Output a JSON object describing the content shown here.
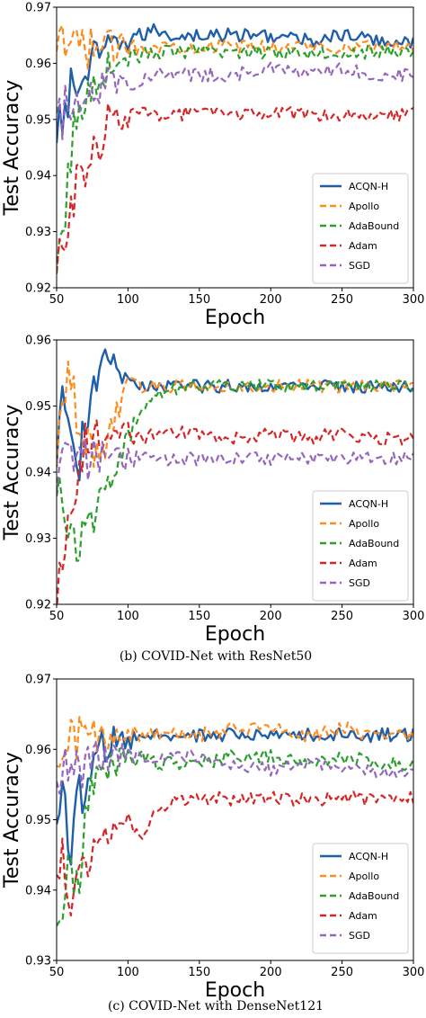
{
  "chart_data": [
    {
      "type": "line",
      "caption": "",
      "xlabel": "Epoch",
      "ylabel": "Test Accuracy",
      "xlim": [
        50,
        300
      ],
      "ylim": [
        0.92,
        0.97
      ],
      "xticks": [
        "50",
        "100",
        "150",
        "200",
        "250",
        "300"
      ],
      "yticks": [
        "0.92",
        "0.93",
        "0.94",
        "0.95",
        "0.96",
        "0.97"
      ],
      "grid": false,
      "legend_position": "lower-right",
      "series": [
        {
          "name": "ACQN-H",
          "color": "#1f5ea8",
          "dash": "solid",
          "x": [
            50,
            55,
            60,
            65,
            70,
            75,
            80,
            85,
            90,
            95,
            100,
            110,
            120,
            130,
            150,
            175,
            200,
            225,
            250,
            275,
            300
          ],
          "y": [
            0.944,
            0.952,
            0.955,
            0.956,
            0.958,
            0.96,
            0.961,
            0.962,
            0.963,
            0.964,
            0.964,
            0.965,
            0.966,
            0.965,
            0.965,
            0.965,
            0.965,
            0.964,
            0.965,
            0.964,
            0.964
          ]
        },
        {
          "name": "Apollo",
          "color": "#ff8c1a",
          "dash": "dashed",
          "x": [
            50,
            55,
            60,
            65,
            70,
            80,
            90,
            100,
            120,
            150,
            175,
            200,
            225,
            250,
            275,
            300
          ],
          "y": [
            0.96,
            0.962,
            0.964,
            0.962,
            0.963,
            0.963,
            0.963,
            0.963,
            0.963,
            0.963,
            0.963,
            0.963,
            0.963,
            0.963,
            0.963,
            0.963
          ]
        },
        {
          "name": "AdaBound",
          "color": "#2ca02c",
          "dash": "dashed",
          "x": [
            50,
            55,
            60,
            65,
            70,
            75,
            80,
            90,
            100,
            120,
            150,
            175,
            200,
            225,
            250,
            275,
            300
          ],
          "y": [
            0.92,
            0.93,
            0.945,
            0.95,
            0.953,
            0.957,
            0.958,
            0.96,
            0.961,
            0.962,
            0.962,
            0.962,
            0.962,
            0.962,
            0.962,
            0.962,
            0.962
          ]
        },
        {
          "name": "Adam",
          "color": "#d62728",
          "dash": "dashed",
          "x": [
            50,
            55,
            60,
            65,
            70,
            75,
            80,
            85,
            90,
            100,
            110,
            120,
            150,
            175,
            200,
            225,
            250,
            275,
            300
          ],
          "y": [
            0.92,
            0.93,
            0.935,
            0.938,
            0.94,
            0.944,
            0.945,
            0.95,
            0.951,
            0.95,
            0.951,
            0.951,
            0.951,
            0.951,
            0.951,
            0.951,
            0.951,
            0.951,
            0.951
          ]
        },
        {
          "name": "SGD",
          "color": "#9467bd",
          "dash": "dashed",
          "x": [
            50,
            55,
            60,
            65,
            70,
            80,
            90,
            100,
            110,
            120,
            150,
            175,
            200,
            225,
            250,
            275,
            300
          ],
          "y": [
            0.948,
            0.951,
            0.953,
            0.955,
            0.956,
            0.956,
            0.957,
            0.957,
            0.957,
            0.958,
            0.958,
            0.958,
            0.959,
            0.958,
            0.959,
            0.958,
            0.958
          ]
        }
      ]
    },
    {
      "type": "line",
      "caption": "(b)  COVID-Net with ResNet50",
      "xlabel": "Epoch",
      "ylabel": "Test Accuracy",
      "xlim": [
        50,
        300
      ],
      "ylim": [
        0.92,
        0.96
      ],
      "xticks": [
        "50",
        "100",
        "150",
        "200",
        "250",
        "300"
      ],
      "yticks": [
        "0.92",
        "0.93",
        "0.94",
        "0.95",
        "0.96"
      ],
      "grid": false,
      "legend_position": "lower-right",
      "series": [
        {
          "name": "ACQN-H",
          "color": "#1f5ea8",
          "dash": "solid",
          "x": [
            50,
            55,
            60,
            65,
            70,
            75,
            80,
            85,
            90,
            95,
            100,
            110,
            120,
            150,
            175,
            200,
            225,
            250,
            275,
            300
          ],
          "y": [
            0.945,
            0.95,
            0.945,
            0.94,
            0.948,
            0.952,
            0.955,
            0.957,
            0.956,
            0.955,
            0.953,
            0.953,
            0.953,
            0.953,
            0.953,
            0.953,
            0.953,
            0.953,
            0.953,
            0.953
          ]
        },
        {
          "name": "Apollo",
          "color": "#ff8c1a",
          "dash": "dashed",
          "x": [
            50,
            55,
            60,
            65,
            70,
            80,
            90,
            100,
            110,
            120,
            150,
            175,
            200,
            225,
            250,
            275,
            300
          ],
          "y": [
            0.945,
            0.95,
            0.955,
            0.948,
            0.945,
            0.942,
            0.948,
            0.953,
            0.953,
            0.953,
            0.953,
            0.953,
            0.953,
            0.953,
            0.953,
            0.953,
            0.953
          ]
        },
        {
          "name": "AdaBound",
          "color": "#2ca02c",
          "dash": "dashed",
          "x": [
            50,
            55,
            60,
            65,
            70,
            75,
            80,
            90,
            100,
            110,
            120,
            140,
            150,
            175,
            200,
            225,
            250,
            275,
            300
          ],
          "y": [
            0.94,
            0.935,
            0.93,
            0.925,
            0.935,
            0.93,
            0.938,
            0.94,
            0.945,
            0.95,
            0.952,
            0.953,
            0.953,
            0.953,
            0.953,
            0.953,
            0.953,
            0.953,
            0.953
          ]
        },
        {
          "name": "Adam",
          "color": "#d62728",
          "dash": "dashed",
          "x": [
            50,
            55,
            60,
            65,
            70,
            75,
            80,
            90,
            100,
            110,
            120,
            150,
            175,
            200,
            225,
            250,
            275,
            300
          ],
          "y": [
            0.922,
            0.93,
            0.935,
            0.94,
            0.944,
            0.945,
            0.945,
            0.946,
            0.946,
            0.945,
            0.946,
            0.946,
            0.945,
            0.946,
            0.945,
            0.946,
            0.945,
            0.945
          ]
        },
        {
          "name": "SGD",
          "color": "#9467bd",
          "dash": "dashed",
          "x": [
            50,
            60,
            70,
            80,
            90,
            100,
            120,
            150,
            175,
            200,
            225,
            250,
            275,
            300
          ],
          "y": [
            0.94,
            0.941,
            0.942,
            0.942,
            0.942,
            0.942,
            0.942,
            0.942,
            0.942,
            0.942,
            0.942,
            0.942,
            0.942,
            0.942
          ]
        }
      ]
    },
    {
      "type": "line",
      "caption": "(c)  COVID-Net with DenseNet121",
      "xlabel": "Epoch",
      "ylabel": "Test Accuracy",
      "xlim": [
        50,
        300
      ],
      "ylim": [
        0.93,
        0.97
      ],
      "xticks": [
        "50",
        "100",
        "150",
        "200",
        "250",
        "300"
      ],
      "yticks": [
        "0.93",
        "0.94",
        "0.95",
        "0.96",
        "0.97"
      ],
      "grid": false,
      "legend_position": "lower-right",
      "series": [
        {
          "name": "ACQN-H",
          "color": "#1f5ea8",
          "dash": "solid",
          "x": [
            50,
            55,
            60,
            65,
            70,
            75,
            80,
            90,
            100,
            110,
            120,
            130,
            150,
            175,
            200,
            225,
            250,
            275,
            300
          ],
          "y": [
            0.95,
            0.955,
            0.945,
            0.955,
            0.95,
            0.958,
            0.96,
            0.961,
            0.961,
            0.962,
            0.962,
            0.962,
            0.962,
            0.962,
            0.962,
            0.962,
            0.962,
            0.962,
            0.962
          ]
        },
        {
          "name": "Apollo",
          "color": "#ff8c1a",
          "dash": "dashed",
          "x": [
            50,
            55,
            60,
            70,
            80,
            90,
            100,
            120,
            150,
            175,
            200,
            225,
            250,
            275,
            300
          ],
          "y": [
            0.958,
            0.96,
            0.961,
            0.961,
            0.962,
            0.962,
            0.962,
            0.962,
            0.962,
            0.963,
            0.963,
            0.962,
            0.963,
            0.962,
            0.962
          ]
        },
        {
          "name": "AdaBound",
          "color": "#2ca02c",
          "dash": "dashed",
          "x": [
            50,
            55,
            60,
            65,
            70,
            75,
            80,
            90,
            100,
            110,
            120,
            150,
            175,
            200,
            225,
            250,
            275,
            300
          ],
          "y": [
            0.935,
            0.94,
            0.945,
            0.94,
            0.95,
            0.955,
            0.957,
            0.958,
            0.959,
            0.959,
            0.958,
            0.958,
            0.959,
            0.959,
            0.958,
            0.959,
            0.958,
            0.958
          ]
        },
        {
          "name": "Adam",
          "color": "#d62728",
          "dash": "dashed",
          "x": [
            50,
            55,
            60,
            65,
            70,
            75,
            80,
            90,
            100,
            110,
            120,
            150,
            175,
            200,
            225,
            250,
            275,
            300
          ],
          "y": [
            0.942,
            0.945,
            0.94,
            0.945,
            0.943,
            0.947,
            0.948,
            0.949,
            0.95,
            0.948,
            0.952,
            0.953,
            0.953,
            0.953,
            0.953,
            0.953,
            0.953,
            0.953
          ]
        },
        {
          "name": "SGD",
          "color": "#9467bd",
          "dash": "dashed",
          "x": [
            50,
            55,
            60,
            70,
            80,
            90,
            100,
            120,
            150,
            175,
            200,
            225,
            250,
            275,
            300
          ],
          "y": [
            0.955,
            0.956,
            0.957,
            0.958,
            0.959,
            0.959,
            0.959,
            0.959,
            0.959,
            0.958,
            0.957,
            0.958,
            0.957,
            0.957,
            0.957
          ]
        }
      ]
    }
  ]
}
